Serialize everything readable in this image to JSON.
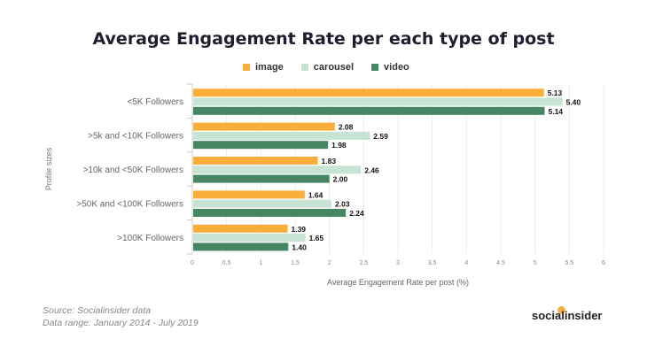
{
  "chart_data": {
    "type": "bar",
    "orientation": "horizontal",
    "title": "Average Engagement Rate per each type of post",
    "xlabel": "Average Engagement Rate per post (%)",
    "ylabel": "Profile sizes",
    "xlim": [
      0,
      6
    ],
    "xticks": [
      "0",
      "0.5",
      "1",
      "1.5",
      "2",
      "2.5",
      "3",
      "3.5",
      "4",
      "4.5",
      "5",
      "5.5",
      "6"
    ],
    "grid": true,
    "legend": "top",
    "categories": [
      "<5K Followers",
      ">5k and <10K Followers",
      ">10k and <50K Followers",
      ">50K and <100K Followers",
      ">100K Followers"
    ],
    "series": [
      {
        "name": "image",
        "color": "#f9ad3a",
        "values": [
          5.13,
          2.08,
          1.83,
          1.64,
          1.39
        ],
        "labels": [
          "5.13",
          "2.08",
          "1.83",
          "1.64",
          "1.39"
        ]
      },
      {
        "name": "carousel",
        "color": "#c6e3d3",
        "values": [
          5.4,
          2.59,
          2.46,
          2.03,
          1.65
        ],
        "labels": [
          "5.40",
          "2.59",
          "2.46",
          "2.03",
          "1.65"
        ]
      },
      {
        "name": "video",
        "color": "#468663",
        "values": [
          5.14,
          1.98,
          2.0,
          2.24,
          1.4
        ],
        "labels": [
          "5.14",
          "1.98",
          "2.00",
          "2.24",
          "1.40"
        ]
      }
    ]
  },
  "footer": {
    "source": "Source: Socialinsider data",
    "range": "Data range: January 2014 - July 2019",
    "logo": "socialinsider"
  }
}
